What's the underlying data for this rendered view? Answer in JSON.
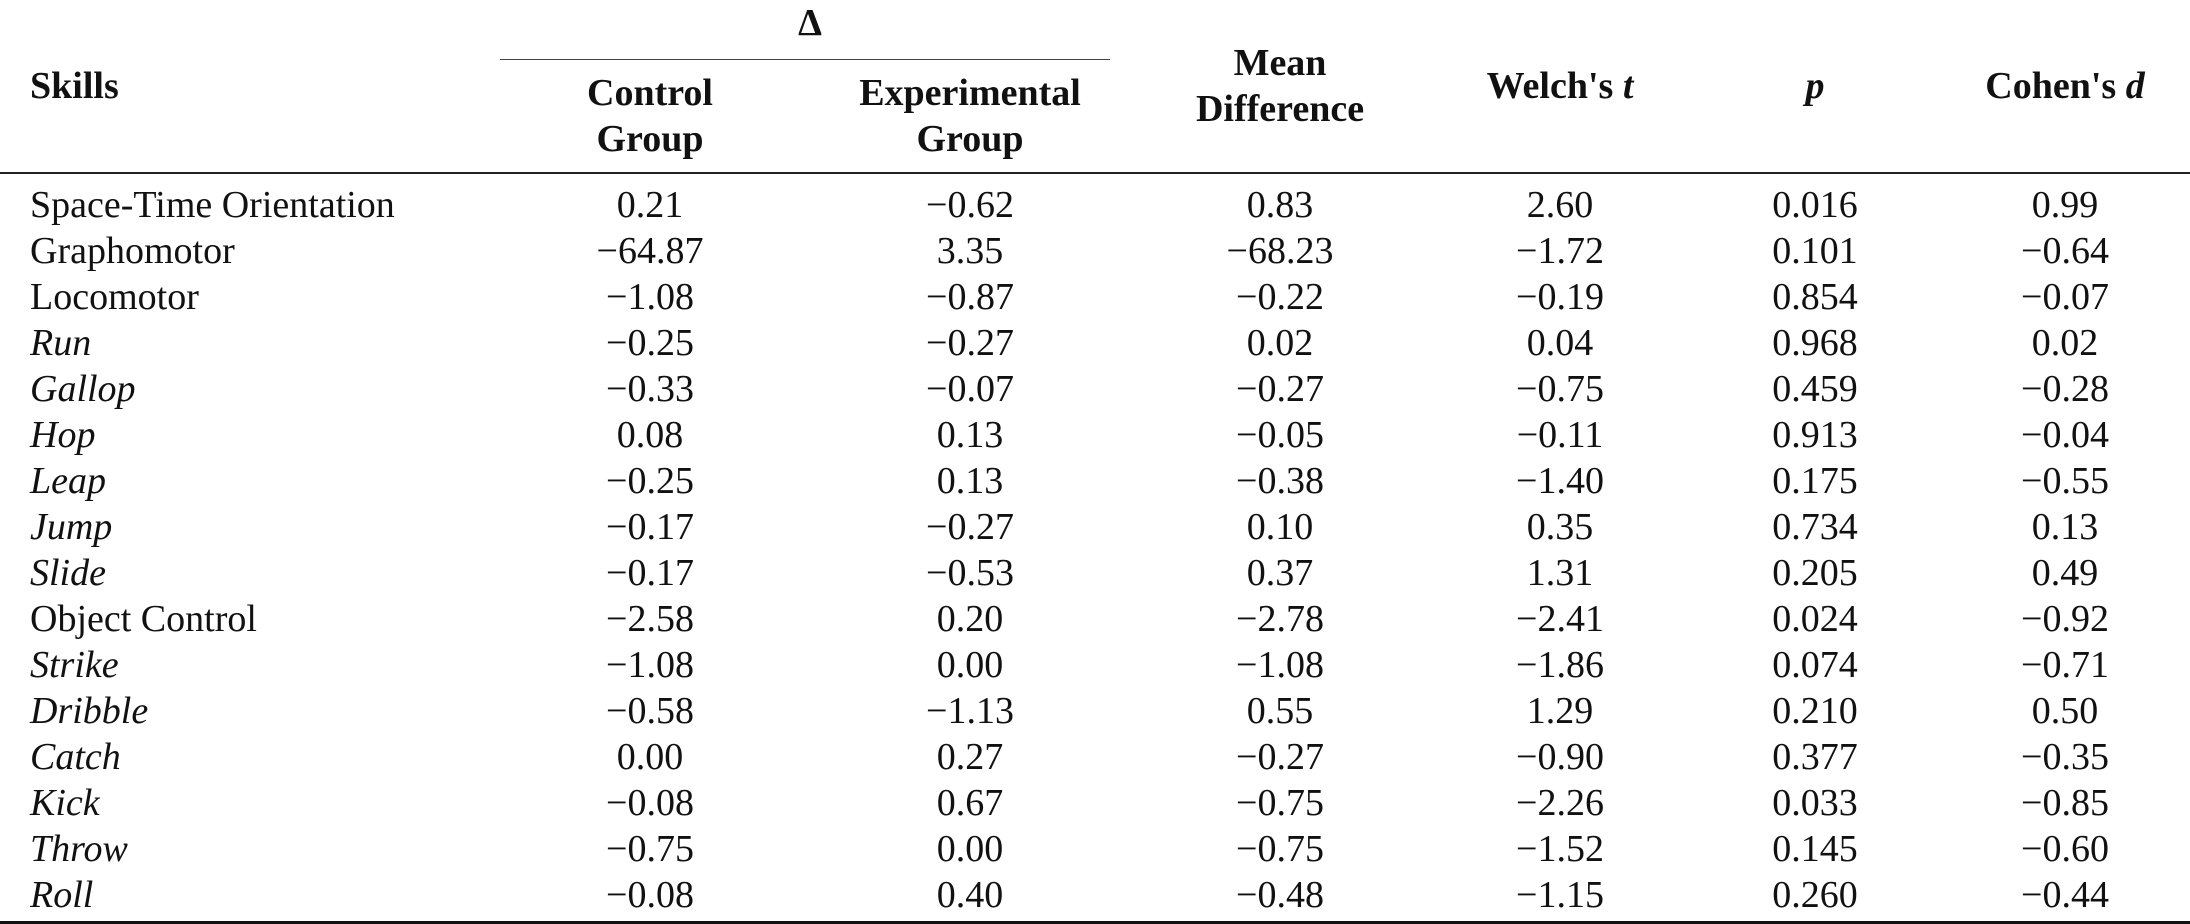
{
  "header": {
    "skills": "Skills",
    "delta": "Δ",
    "control_group": [
      "Control",
      "Group"
    ],
    "experimental_group": [
      "Experimental",
      "Group"
    ],
    "mean_difference": [
      "Mean",
      "Difference"
    ],
    "welch_prefix": "Welch's ",
    "welch_var": "t",
    "p": "p",
    "cohen_prefix": "Cohen's ",
    "cohen_var": "d"
  },
  "rows": [
    {
      "skill": "Space-Time Orientation",
      "sub": false,
      "control": "0.21",
      "experimental": "−0.62",
      "mean_diff": "0.83",
      "welch_t": "2.60",
      "p": "0.016",
      "cohen_d": "0.99"
    },
    {
      "skill": "Graphomotor",
      "sub": false,
      "control": "−64.87",
      "experimental": "3.35",
      "mean_diff": "−68.23",
      "welch_t": "−1.72",
      "p": "0.101",
      "cohen_d": "−0.64"
    },
    {
      "skill": "Locomotor",
      "sub": false,
      "control": "−1.08",
      "experimental": "−0.87",
      "mean_diff": "−0.22",
      "welch_t": "−0.19",
      "p": "0.854",
      "cohen_d": "−0.07"
    },
    {
      "skill": "Run",
      "sub": true,
      "control": "−0.25",
      "experimental": "−0.27",
      "mean_diff": "0.02",
      "welch_t": "0.04",
      "p": "0.968",
      "cohen_d": "0.02"
    },
    {
      "skill": "Gallop",
      "sub": true,
      "control": "−0.33",
      "experimental": "−0.07",
      "mean_diff": "−0.27",
      "welch_t": "−0.75",
      "p": "0.459",
      "cohen_d": "−0.28"
    },
    {
      "skill": "Hop",
      "sub": true,
      "control": "0.08",
      "experimental": "0.13",
      "mean_diff": "−0.05",
      "welch_t": "−0.11",
      "p": "0.913",
      "cohen_d": "−0.04"
    },
    {
      "skill": "Leap",
      "sub": true,
      "control": "−0.25",
      "experimental": "0.13",
      "mean_diff": "−0.38",
      "welch_t": "−1.40",
      "p": "0.175",
      "cohen_d": "−0.55"
    },
    {
      "skill": "Jump",
      "sub": true,
      "control": "−0.17",
      "experimental": "−0.27",
      "mean_diff": "0.10",
      "welch_t": "0.35",
      "p": "0.734",
      "cohen_d": "0.13"
    },
    {
      "skill": "Slide",
      "sub": true,
      "control": "−0.17",
      "experimental": "−0.53",
      "mean_diff": "0.37",
      "welch_t": "1.31",
      "p": "0.205",
      "cohen_d": "0.49"
    },
    {
      "skill": "Object Control",
      "sub": false,
      "control": "−2.58",
      "experimental": "0.20",
      "mean_diff": "−2.78",
      "welch_t": "−2.41",
      "p": "0.024",
      "cohen_d": "−0.92"
    },
    {
      "skill": "Strike",
      "sub": true,
      "control": "−1.08",
      "experimental": "0.00",
      "mean_diff": "−1.08",
      "welch_t": "−1.86",
      "p": "0.074",
      "cohen_d": "−0.71"
    },
    {
      "skill": "Dribble",
      "sub": true,
      "control": "−0.58",
      "experimental": "−1.13",
      "mean_diff": "0.55",
      "welch_t": "1.29",
      "p": "0.210",
      "cohen_d": "0.50"
    },
    {
      "skill": "Catch",
      "sub": true,
      "control": "0.00",
      "experimental": "0.27",
      "mean_diff": "−0.27",
      "welch_t": "−0.90",
      "p": "0.377",
      "cohen_d": "−0.35"
    },
    {
      "skill": "Kick",
      "sub": true,
      "control": "−0.08",
      "experimental": "0.67",
      "mean_diff": "−0.75",
      "welch_t": "−2.26",
      "p": "0.033",
      "cohen_d": "−0.85"
    },
    {
      "skill": "Throw",
      "sub": true,
      "control": "−0.75",
      "experimental": "0.00",
      "mean_diff": "−0.75",
      "welch_t": "−1.52",
      "p": "0.145",
      "cohen_d": "−0.60"
    },
    {
      "skill": "Roll",
      "sub": true,
      "control": "−0.08",
      "experimental": "0.40",
      "mean_diff": "−0.48",
      "welch_t": "−1.15",
      "p": "0.260",
      "cohen_d": "−0.44"
    }
  ]
}
